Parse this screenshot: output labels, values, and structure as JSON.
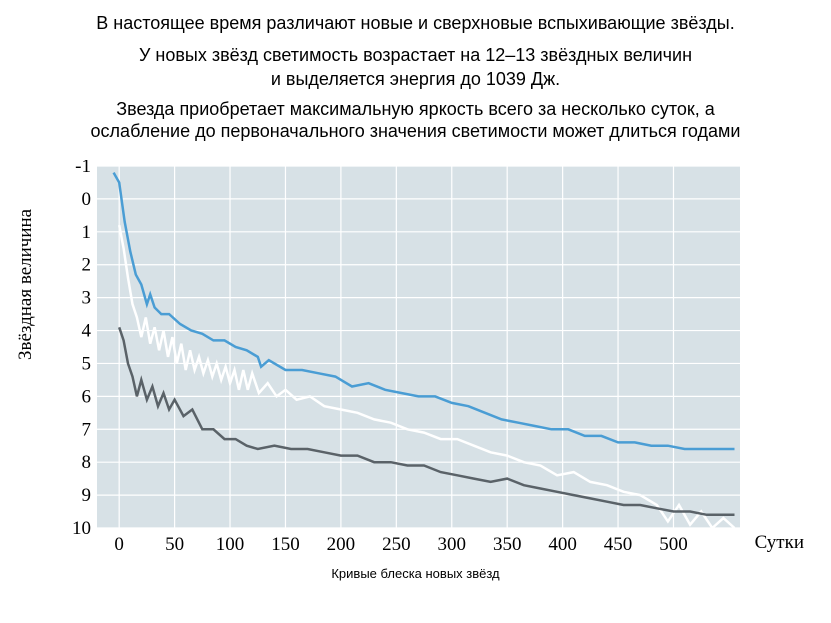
{
  "text": {
    "line1": "В настоящее время различают новые и сверхновые вспыхивающие звёзды.",
    "line2": "У новых звёзд светимость возрастает на 12–13 звёздных величин",
    "line3": "и выделяется энергия до 1039 Дж.",
    "line4": "Звезда приобретает максимальную яркость всего за несколько суток, а",
    "line5": "ослабление до первоначального значения светимости может длиться годами"
  },
  "chart": {
    "type": "line",
    "caption": "Кривые блеска новых звёзд",
    "ylabel": "Звёздная величина",
    "xlabel": "Сутки",
    "background_color": "#d7e1e6",
    "grid_color": "#ffffff",
    "xlim": [
      -20,
      560
    ],
    "ylim_top": -1,
    "ylim_bottom": 10,
    "xticks": [
      0,
      50,
      100,
      150,
      200,
      250,
      300,
      350,
      400,
      450,
      500
    ],
    "yticks": [
      -1,
      0,
      1,
      2,
      3,
      4,
      5,
      6,
      7,
      8,
      9,
      10
    ],
    "series": [
      {
        "name": "curve-blue",
        "color": "#4a9dd4",
        "stroke_width": 2.8,
        "points": [
          [
            -5,
            -0.8
          ],
          [
            0,
            -0.5
          ],
          [
            5,
            0.7
          ],
          [
            10,
            1.6
          ],
          [
            15,
            2.3
          ],
          [
            20,
            2.6
          ],
          [
            25,
            3.2
          ],
          [
            28,
            2.9
          ],
          [
            32,
            3.3
          ],
          [
            38,
            3.5
          ],
          [
            45,
            3.5
          ],
          [
            55,
            3.8
          ],
          [
            65,
            4.0
          ],
          [
            75,
            4.1
          ],
          [
            85,
            4.3
          ],
          [
            95,
            4.3
          ],
          [
            105,
            4.5
          ],
          [
            115,
            4.6
          ],
          [
            125,
            4.8
          ],
          [
            128,
            5.1
          ],
          [
            135,
            4.9
          ],
          [
            150,
            5.2
          ],
          [
            165,
            5.2
          ],
          [
            180,
            5.3
          ],
          [
            195,
            5.4
          ],
          [
            210,
            5.7
          ],
          [
            225,
            5.6
          ],
          [
            240,
            5.8
          ],
          [
            255,
            5.9
          ],
          [
            270,
            6.0
          ],
          [
            285,
            6.0
          ],
          [
            300,
            6.2
          ],
          [
            315,
            6.3
          ],
          [
            330,
            6.5
          ],
          [
            345,
            6.7
          ],
          [
            360,
            6.8
          ],
          [
            375,
            6.9
          ],
          [
            390,
            7.0
          ],
          [
            405,
            7.0
          ],
          [
            420,
            7.2
          ],
          [
            435,
            7.2
          ],
          [
            450,
            7.4
          ],
          [
            465,
            7.4
          ],
          [
            480,
            7.5
          ],
          [
            495,
            7.5
          ],
          [
            510,
            7.6
          ],
          [
            525,
            7.6
          ],
          [
            540,
            7.6
          ],
          [
            555,
            7.6
          ]
        ]
      },
      {
        "name": "curve-white",
        "color": "#ffffff",
        "stroke_width": 2.5,
        "points": [
          [
            0,
            0.8
          ],
          [
            4,
            1.5
          ],
          [
            8,
            2.4
          ],
          [
            12,
            3.2
          ],
          [
            16,
            3.6
          ],
          [
            20,
            4.2
          ],
          [
            24,
            3.6
          ],
          [
            28,
            4.4
          ],
          [
            32,
            3.9
          ],
          [
            36,
            4.6
          ],
          [
            40,
            4.0
          ],
          [
            44,
            4.8
          ],
          [
            48,
            4.2
          ],
          [
            52,
            5.0
          ],
          [
            56,
            4.4
          ],
          [
            60,
            5.2
          ],
          [
            64,
            4.6
          ],
          [
            68,
            5.2
          ],
          [
            72,
            4.8
          ],
          [
            76,
            5.3
          ],
          [
            80,
            4.9
          ],
          [
            84,
            5.4
          ],
          [
            88,
            5.0
          ],
          [
            92,
            5.5
          ],
          [
            96,
            5.1
          ],
          [
            100,
            5.6
          ],
          [
            104,
            5.2
          ],
          [
            108,
            5.8
          ],
          [
            112,
            5.2
          ],
          [
            116,
            5.8
          ],
          [
            120,
            5.3
          ],
          [
            126,
            5.9
          ],
          [
            134,
            5.6
          ],
          [
            142,
            6.0
          ],
          [
            150,
            5.8
          ],
          [
            160,
            6.1
          ],
          [
            172,
            6.0
          ],
          [
            185,
            6.3
          ],
          [
            200,
            6.4
          ],
          [
            215,
            6.5
          ],
          [
            230,
            6.7
          ],
          [
            245,
            6.8
          ],
          [
            260,
            7.0
          ],
          [
            275,
            7.1
          ],
          [
            290,
            7.3
          ],
          [
            305,
            7.3
          ],
          [
            320,
            7.5
          ],
          [
            335,
            7.7
          ],
          [
            350,
            7.8
          ],
          [
            365,
            8.0
          ],
          [
            380,
            8.1
          ],
          [
            395,
            8.4
          ],
          [
            410,
            8.3
          ],
          [
            425,
            8.6
          ],
          [
            440,
            8.7
          ],
          [
            455,
            8.9
          ],
          [
            470,
            9.0
          ],
          [
            485,
            9.3
          ],
          [
            495,
            9.8
          ],
          [
            505,
            9.3
          ],
          [
            515,
            9.9
          ],
          [
            525,
            9.5
          ],
          [
            535,
            10.0
          ],
          [
            545,
            9.7
          ],
          [
            555,
            10.0
          ]
        ]
      },
      {
        "name": "curve-dark",
        "color": "#5a6268",
        "stroke_width": 2.6,
        "points": [
          [
            0,
            3.9
          ],
          [
            4,
            4.3
          ],
          [
            8,
            5.0
          ],
          [
            12,
            5.4
          ],
          [
            16,
            6.0
          ],
          [
            20,
            5.5
          ],
          [
            25,
            6.1
          ],
          [
            30,
            5.7
          ],
          [
            35,
            6.3
          ],
          [
            40,
            5.9
          ],
          [
            45,
            6.4
          ],
          [
            50,
            6.1
          ],
          [
            58,
            6.6
          ],
          [
            66,
            6.4
          ],
          [
            75,
            7.0
          ],
          [
            85,
            7.0
          ],
          [
            95,
            7.3
          ],
          [
            105,
            7.3
          ],
          [
            115,
            7.5
          ],
          [
            125,
            7.6
          ],
          [
            140,
            7.5
          ],
          [
            155,
            7.6
          ],
          [
            170,
            7.6
          ],
          [
            185,
            7.7
          ],
          [
            200,
            7.8
          ],
          [
            215,
            7.8
          ],
          [
            230,
            8.0
          ],
          [
            245,
            8.0
          ],
          [
            260,
            8.1
          ],
          [
            275,
            8.1
          ],
          [
            290,
            8.3
          ],
          [
            305,
            8.4
          ],
          [
            320,
            8.5
          ],
          [
            335,
            8.6
          ],
          [
            350,
            8.5
          ],
          [
            365,
            8.7
          ],
          [
            380,
            8.8
          ],
          [
            395,
            8.9
          ],
          [
            410,
            9.0
          ],
          [
            425,
            9.1
          ],
          [
            440,
            9.2
          ],
          [
            455,
            9.3
          ],
          [
            470,
            9.3
          ],
          [
            485,
            9.4
          ],
          [
            500,
            9.5
          ],
          [
            515,
            9.5
          ],
          [
            530,
            9.6
          ],
          [
            545,
            9.6
          ],
          [
            555,
            9.6
          ]
        ]
      }
    ]
  }
}
